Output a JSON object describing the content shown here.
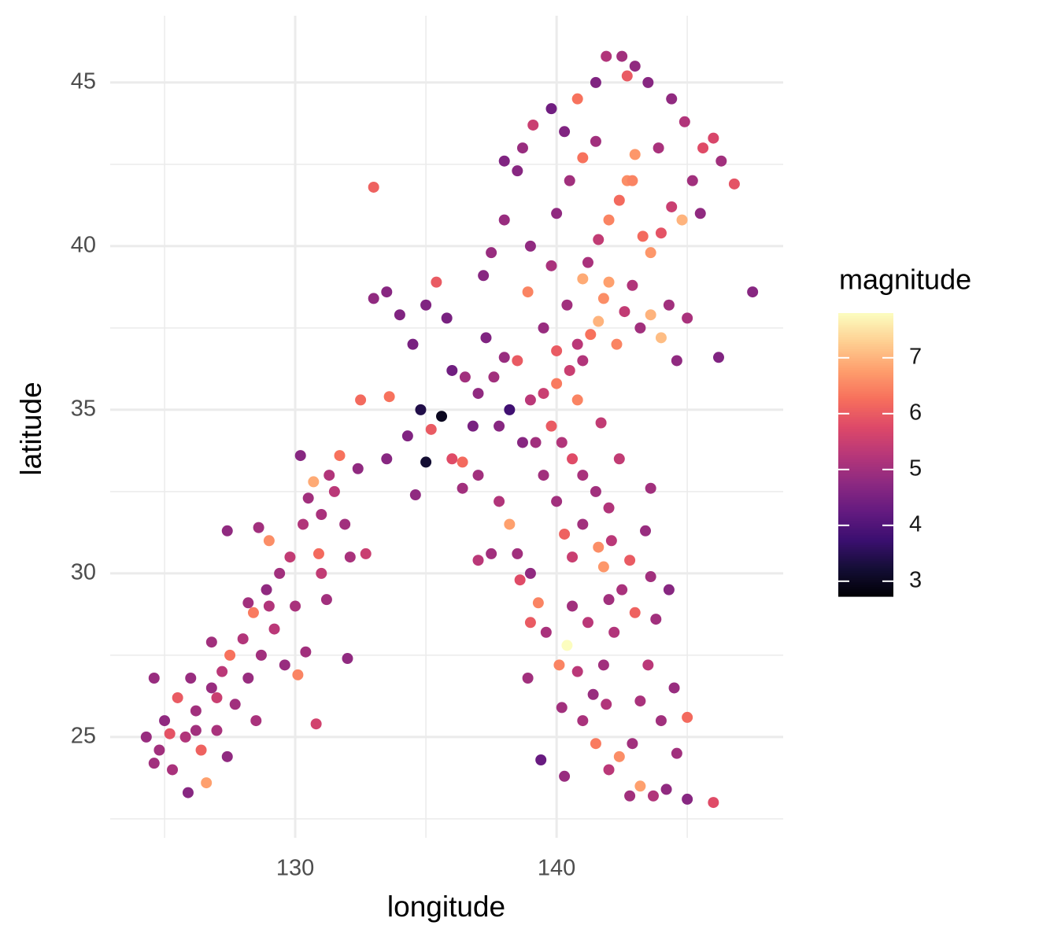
{
  "chart_data": {
    "type": "scatter",
    "xlabel": "longitude",
    "ylabel": "latitude",
    "xlim": [
      122.92,
      148.67
    ],
    "ylim": [
      21.92,
      47.04
    ],
    "xticks": [
      130,
      140
    ],
    "yticks": [
      25,
      30,
      35,
      40,
      45
    ],
    "xminor": [
      125,
      135,
      145
    ],
    "yminor": [
      22.5,
      27.5,
      32.5,
      37.5,
      42.5
    ],
    "grid": true,
    "colorbar": {
      "title": "magnitude",
      "lim": [
        2.73,
        7.8
      ],
      "ticks": [
        3,
        4,
        5,
        6,
        7
      ],
      "colormap": "magma"
    },
    "points": [
      [
        124.3,
        25.0,
        4.9
      ],
      [
        124.6,
        24.2,
        5.0
      ],
      [
        125.0,
        25.5,
        4.8
      ],
      [
        125.3,
        24.0,
        5.1
      ],
      [
        125.5,
        26.2,
        6.0
      ],
      [
        125.8,
        25.0,
        5.2
      ],
      [
        125.9,
        23.3,
        4.7
      ],
      [
        126.2,
        25.8,
        5.0
      ],
      [
        126.4,
        24.6,
        6.1
      ],
      [
        126.6,
        23.6,
        6.8
      ],
      [
        126.8,
        26.5,
        4.9
      ],
      [
        127.0,
        25.2,
        5.1
      ],
      [
        127.2,
        27.0,
        5.3
      ],
      [
        127.4,
        24.4,
        4.8
      ],
      [
        127.5,
        27.5,
        6.3
      ],
      [
        127.7,
        26.0,
        5.0
      ],
      [
        128.0,
        28.0,
        5.2
      ],
      [
        128.2,
        26.8,
        4.9
      ],
      [
        128.4,
        28.8,
        6.4
      ],
      [
        128.5,
        25.5,
        5.1
      ],
      [
        128.7,
        27.5,
        5.0
      ],
      [
        128.9,
        29.5,
        4.8
      ],
      [
        129.0,
        31.0,
        6.6
      ],
      [
        129.2,
        28.3,
        5.3
      ],
      [
        129.4,
        30.0,
        5.0
      ],
      [
        129.6,
        27.2,
        4.9
      ],
      [
        129.8,
        30.5,
        5.4
      ],
      [
        130.0,
        29.0,
        5.1
      ],
      [
        130.1,
        26.9,
        6.5
      ],
      [
        130.3,
        31.5,
        5.2
      ],
      [
        130.5,
        32.3,
        5.0
      ],
      [
        130.7,
        32.8,
        6.9
      ],
      [
        130.9,
        30.6,
        6.2
      ],
      [
        131.0,
        31.8,
        5.1
      ],
      [
        131.2,
        29.2,
        5.0
      ],
      [
        131.5,
        32.5,
        5.3
      ],
      [
        131.7,
        33.6,
        6.3
      ],
      [
        131.9,
        31.5,
        5.0
      ],
      [
        132.1,
        30.5,
        5.1
      ],
      [
        132.4,
        33.2,
        4.8
      ],
      [
        132.7,
        30.6,
        5.5
      ],
      [
        128.6,
        31.4,
        5.0
      ],
      [
        127.4,
        31.3,
        4.8
      ],
      [
        126.8,
        27.9,
        5.0
      ],
      [
        125.2,
        25.1,
        5.9
      ],
      [
        124.8,
        24.6,
        5.0
      ],
      [
        126.2,
        25.2,
        5.0
      ],
      [
        127.0,
        26.2,
        5.5
      ],
      [
        129.0,
        29.0,
        5.2
      ],
      [
        130.4,
        27.6,
        5.0
      ],
      [
        131.3,
        33.0,
        5.2
      ],
      [
        130.2,
        33.6,
        4.7
      ],
      [
        131.0,
        30.0,
        5.4
      ],
      [
        128.2,
        29.1,
        5.0
      ],
      [
        124.6,
        26.8,
        4.9
      ],
      [
        126.0,
        26.8,
        4.9
      ],
      [
        133.0,
        41.8,
        6.1
      ],
      [
        132.5,
        35.3,
        6.2
      ],
      [
        133.6,
        35.4,
        6.3
      ],
      [
        130.8,
        25.4,
        5.6
      ],
      [
        132.0,
        27.4,
        4.8
      ],
      [
        133.0,
        38.4,
        4.8
      ],
      [
        133.5,
        38.6,
        4.7
      ],
      [
        134.0,
        37.9,
        4.6
      ],
      [
        134.5,
        37.0,
        4.5
      ],
      [
        135.0,
        38.2,
        4.6
      ],
      [
        135.4,
        38.9,
        6.0
      ],
      [
        135.8,
        37.8,
        4.5
      ],
      [
        136.0,
        36.2,
        4.4
      ],
      [
        134.8,
        35.0,
        3.4
      ],
      [
        135.2,
        34.4,
        6.0
      ],
      [
        135.6,
        34.8,
        3.0
      ],
      [
        135.0,
        33.4,
        3.2
      ],
      [
        136.0,
        33.5,
        5.8
      ],
      [
        136.4,
        33.4,
        6.2
      ],
      [
        136.8,
        34.5,
        4.5
      ],
      [
        137.0,
        35.5,
        4.8
      ],
      [
        137.3,
        37.2,
        4.6
      ],
      [
        137.6,
        36.0,
        5.0
      ],
      [
        137.8,
        34.5,
        4.7
      ],
      [
        138.0,
        36.6,
        4.9
      ],
      [
        138.2,
        35.0,
        3.8
      ],
      [
        138.5,
        36.5,
        6.0
      ],
      [
        138.7,
        34.0,
        4.7
      ],
      [
        134.6,
        32.4,
        4.8
      ],
      [
        136.4,
        32.6,
        5.0
      ],
      [
        137.0,
        33.0,
        5.0
      ],
      [
        133.5,
        33.5,
        4.7
      ],
      [
        134.3,
        34.2,
        4.6
      ],
      [
        136.5,
        36.0,
        5.0
      ],
      [
        138.9,
        38.6,
        6.5
      ],
      [
        137.2,
        39.1,
        4.7
      ],
      [
        137.5,
        39.8,
        4.9
      ],
      [
        138.0,
        40.8,
        4.9
      ],
      [
        139.5,
        35.5,
        5.5
      ],
      [
        140.0,
        35.8,
        6.4
      ],
      [
        140.5,
        36.2,
        5.5
      ],
      [
        140.8,
        35.3,
        6.5
      ],
      [
        141.0,
        36.5,
        5.2
      ],
      [
        141.3,
        37.3,
        6.3
      ],
      [
        141.6,
        37.7,
        7.0
      ],
      [
        141.8,
        38.4,
        6.6
      ],
      [
        142.0,
        38.9,
        6.8
      ],
      [
        142.3,
        37.0,
        6.5
      ],
      [
        142.6,
        38.0,
        5.4
      ],
      [
        142.9,
        38.8,
        5.2
      ],
      [
        143.2,
        37.5,
        5.0
      ],
      [
        143.6,
        37.9,
        7.0
      ],
      [
        144.0,
        37.2,
        7.1
      ],
      [
        144.3,
        38.2,
        5.0
      ],
      [
        144.6,
        36.5,
        4.8
      ],
      [
        145.0,
        37.8,
        5.1
      ],
      [
        141.2,
        39.5,
        5.1
      ],
      [
        141.6,
        40.2,
        5.4
      ],
      [
        142.0,
        40.8,
        6.5
      ],
      [
        142.4,
        41.4,
        6.2
      ],
      [
        142.7,
        42.0,
        6.6
      ],
      [
        143.0,
        42.8,
        6.7
      ],
      [
        143.3,
        40.3,
        6.2
      ],
      [
        143.6,
        39.8,
        6.7
      ],
      [
        144.0,
        40.4,
        5.9
      ],
      [
        144.4,
        41.2,
        5.5
      ],
      [
        144.8,
        40.8,
        7.0
      ],
      [
        145.2,
        42.0,
        5.0
      ],
      [
        145.6,
        43.0,
        5.8
      ],
      [
        146.0,
        43.3,
        5.7
      ],
      [
        146.3,
        42.6,
        5.0
      ],
      [
        146.8,
        41.9,
        5.9
      ],
      [
        147.5,
        38.6,
        4.7
      ],
      [
        146.2,
        36.6,
        4.6
      ],
      [
        140.0,
        41.0,
        4.8
      ],
      [
        140.5,
        42.0,
        5.0
      ],
      [
        141.0,
        42.7,
        6.3
      ],
      [
        141.5,
        43.2,
        5.0
      ],
      [
        140.3,
        43.5,
        4.6
      ],
      [
        139.8,
        44.2,
        4.4
      ],
      [
        140.8,
        44.5,
        6.3
      ],
      [
        141.5,
        45.0,
        4.6
      ],
      [
        141.9,
        45.8,
        5.2
      ],
      [
        142.5,
        45.8,
        5.0
      ],
      [
        143.0,
        45.5,
        4.8
      ],
      [
        143.5,
        45.0,
        4.7
      ],
      [
        144.4,
        44.5,
        4.8
      ],
      [
        142.7,
        45.2,
        6.0
      ],
      [
        139.1,
        43.7,
        5.5
      ],
      [
        138.5,
        42.3,
        4.7
      ],
      [
        138.0,
        42.6,
        4.6
      ],
      [
        139.0,
        40.0,
        4.8
      ],
      [
        139.8,
        39.4,
        5.1
      ],
      [
        140.4,
        38.2,
        5.0
      ],
      [
        140.8,
        37.0,
        5.3
      ],
      [
        139.5,
        37.5,
        4.9
      ],
      [
        138.7,
        43.0,
        4.9
      ],
      [
        144.9,
        43.8,
        5.2
      ],
      [
        143.9,
        43.0,
        5.1
      ],
      [
        145.5,
        41.0,
        4.8
      ],
      [
        141.0,
        39.0,
        6.9
      ],
      [
        142.9,
        42.0,
        6.5
      ],
      [
        139.2,
        34.0,
        5.0
      ],
      [
        139.8,
        34.5,
        6.0
      ],
      [
        140.2,
        34.0,
        5.2
      ],
      [
        140.6,
        33.5,
        5.8
      ],
      [
        141.0,
        33.0,
        5.1
      ],
      [
        141.5,
        32.5,
        5.0
      ],
      [
        142.0,
        32.0,
        5.2
      ],
      [
        139.5,
        33.0,
        5.0
      ],
      [
        140.0,
        32.2,
        5.0
      ],
      [
        140.3,
        31.2,
        6.1
      ],
      [
        140.6,
        30.5,
        5.5
      ],
      [
        141.0,
        31.5,
        5.0
      ],
      [
        141.6,
        30.8,
        6.6
      ],
      [
        141.8,
        30.2,
        6.7
      ],
      [
        142.1,
        31.0,
        5.3
      ],
      [
        142.5,
        29.5,
        5.1
      ],
      [
        142.8,
        30.4,
        6.0
      ],
      [
        143.0,
        28.8,
        6.1
      ],
      [
        142.2,
        28.2,
        5.2
      ],
      [
        141.8,
        27.2,
        5.0
      ],
      [
        141.4,
        26.3,
        4.9
      ],
      [
        141.0,
        25.5,
        5.1
      ],
      [
        141.5,
        24.8,
        6.4
      ],
      [
        142.0,
        24.0,
        5.3
      ],
      [
        142.4,
        24.4,
        6.6
      ],
      [
        142.8,
        23.2,
        5.0
      ],
      [
        143.2,
        23.5,
        6.8
      ],
      [
        143.7,
        23.2,
        5.2
      ],
      [
        144.2,
        23.4,
        4.8
      ],
      [
        145.0,
        23.1,
        4.7
      ],
      [
        146.0,
        23.0,
        5.8
      ],
      [
        144.0,
        25.5,
        5.0
      ],
      [
        144.5,
        26.5,
        4.9
      ],
      [
        145.0,
        25.6,
        6.2
      ],
      [
        143.5,
        27.2,
        5.3
      ],
      [
        143.8,
        28.6,
        5.0
      ],
      [
        144.3,
        29.5,
        4.7
      ],
      [
        139.0,
        30.0,
        4.8
      ],
      [
        139.3,
        29.1,
        6.5
      ],
      [
        139.6,
        28.2,
        5.1
      ],
      [
        140.1,
        27.2,
        6.5
      ],
      [
        140.4,
        27.8,
        7.8
      ],
      [
        140.8,
        27.0,
        5.3
      ],
      [
        139.0,
        28.5,
        6.0
      ],
      [
        138.5,
        30.6,
        5.0
      ],
      [
        138.2,
        31.5,
        6.8
      ],
      [
        137.8,
        32.2,
        5.2
      ],
      [
        137.5,
        30.6,
        5.0
      ],
      [
        137.0,
        30.4,
        5.3
      ],
      [
        138.6,
        29.8,
        5.8
      ],
      [
        139.4,
        24.3,
        4.3
      ],
      [
        140.2,
        25.9,
        5.0
      ],
      [
        141.2,
        28.5,
        5.3
      ],
      [
        142.0,
        29.2,
        5.0
      ],
      [
        140.6,
        29.0,
        5.0
      ],
      [
        143.2,
        26.1,
        5.1
      ],
      [
        142.9,
        24.8,
        5.0
      ],
      [
        143.4,
        31.3,
        4.9
      ],
      [
        143.6,
        32.6,
        5.0
      ],
      [
        142.4,
        33.5,
        5.4
      ],
      [
        141.7,
        34.6,
        5.4
      ],
      [
        140.0,
        36.8,
        6.0
      ],
      [
        139.0,
        35.3,
        5.3
      ],
      [
        144.6,
        24.5,
        5.0
      ],
      [
        141.9,
        26.0,
        5.2
      ],
      [
        143.6,
        29.9,
        5.0
      ],
      [
        140.3,
        23.8,
        4.9
      ],
      [
        138.9,
        26.8,
        5.0
      ]
    ]
  }
}
